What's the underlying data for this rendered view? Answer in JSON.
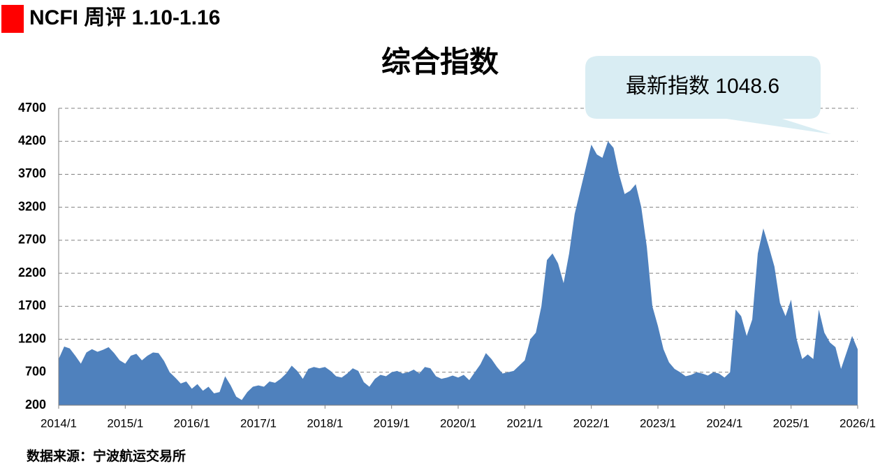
{
  "header": "NCFI 周评 1.10-1.16",
  "source": "数据来源：宁波航运交易所",
  "chart_data": {
    "type": "area",
    "title": "综合指数",
    "annotation": "最新指数 1048.6",
    "color": "#4f81bd",
    "grid": true,
    "ylim": [
      200,
      4700
    ],
    "yticks": [
      200,
      700,
      1200,
      1700,
      2200,
      2700,
      3200,
      3700,
      4200,
      4700
    ],
    "xticks": [
      "2014/1",
      "2015/1",
      "2016/1",
      "2017/1",
      "2018/1",
      "2019/1",
      "2020/1",
      "2021/1",
      "2022/1",
      "2023/1",
      "2024/1",
      "2025/1",
      "2026/1"
    ],
    "x": [
      "2014/1",
      "2014/2",
      "2014/3",
      "2014/4",
      "2014/5",
      "2014/6",
      "2014/7",
      "2014/8",
      "2014/9",
      "2014/10",
      "2014/11",
      "2014/12",
      "2015/1",
      "2015/2",
      "2015/3",
      "2015/4",
      "2015/5",
      "2015/6",
      "2015/7",
      "2015/8",
      "2015/9",
      "2015/10",
      "2015/11",
      "2015/12",
      "2016/1",
      "2016/2",
      "2016/3",
      "2016/4",
      "2016/5",
      "2016/6",
      "2016/7",
      "2016/8",
      "2016/9",
      "2016/10",
      "2016/11",
      "2016/12",
      "2017/1",
      "2017/2",
      "2017/3",
      "2017/4",
      "2017/5",
      "2017/6",
      "2017/7",
      "2017/8",
      "2017/9",
      "2017/10",
      "2017/11",
      "2017/12",
      "2018/1",
      "2018/2",
      "2018/3",
      "2018/4",
      "2018/5",
      "2018/6",
      "2018/7",
      "2018/8",
      "2018/9",
      "2018/10",
      "2018/11",
      "2018/12",
      "2019/1",
      "2019/2",
      "2019/3",
      "2019/4",
      "2019/5",
      "2019/6",
      "2019/7",
      "2019/8",
      "2019/9",
      "2019/10",
      "2019/11",
      "2019/12",
      "2020/1",
      "2020/2",
      "2020/3",
      "2020/4",
      "2020/5",
      "2020/6",
      "2020/7",
      "2020/8",
      "2020/9",
      "2020/10",
      "2020/11",
      "2020/12",
      "2021/1",
      "2021/2",
      "2021/3",
      "2021/4",
      "2021/5",
      "2021/6",
      "2021/7",
      "2021/8",
      "2021/9",
      "2021/10",
      "2021/11",
      "2021/12",
      "2022/1",
      "2022/2",
      "2022/3",
      "2022/4",
      "2022/5",
      "2022/6",
      "2022/7",
      "2022/8",
      "2022/9",
      "2022/10",
      "2022/11",
      "2022/12",
      "2023/1",
      "2023/2",
      "2023/3",
      "2023/4",
      "2023/5",
      "2023/6",
      "2023/7",
      "2023/8",
      "2023/9",
      "2023/10",
      "2023/11",
      "2023/12",
      "2024/1",
      "2024/2",
      "2024/3",
      "2024/4",
      "2024/5",
      "2024/6",
      "2024/7",
      "2024/8",
      "2024/9",
      "2024/10",
      "2024/11",
      "2024/12",
      "2025/1",
      "2025/2",
      "2025/3",
      "2025/4",
      "2025/5",
      "2025/6",
      "2025/7",
      "2025/8",
      "2025/9",
      "2025/10",
      "2025/11",
      "2025/12",
      "2026/1"
    ],
    "values": [
      900,
      1090,
      1060,
      950,
      830,
      1000,
      1050,
      1010,
      1040,
      1080,
      990,
      880,
      830,
      950,
      980,
      880,
      950,
      1000,
      990,
      870,
      700,
      620,
      530,
      560,
      450,
      520,
      420,
      480,
      380,
      400,
      640,
      500,
      330,
      280,
      400,
      480,
      500,
      480,
      560,
      540,
      600,
      680,
      800,
      720,
      600,
      750,
      780,
      760,
      780,
      720,
      640,
      620,
      680,
      760,
      720,
      550,
      480,
      600,
      660,
      640,
      700,
      720,
      680,
      700,
      740,
      680,
      780,
      760,
      640,
      600,
      620,
      650,
      620,
      660,
      580,
      700,
      820,
      990,
      900,
      780,
      680,
      700,
      720,
      800,
      880,
      1200,
      1300,
      1700,
      2400,
      2500,
      2350,
      2050,
      2500,
      3100,
      3450,
      3800,
      4150,
      4000,
      3950,
      4200,
      4100,
      3700,
      3400,
      3450,
      3550,
      3200,
      2600,
      1700,
      1400,
      1050,
      850,
      750,
      700,
      640,
      660,
      700,
      680,
      650,
      700,
      680,
      620,
      700,
      1650,
      1550,
      1250,
      1500,
      2500,
      2880,
      2600,
      2300,
      1750,
      1550,
      1800,
      1200,
      900,
      970,
      900,
      1650,
      1300,
      1150,
      1080,
      750,
      1000,
      1250,
      1048.6
    ]
  }
}
